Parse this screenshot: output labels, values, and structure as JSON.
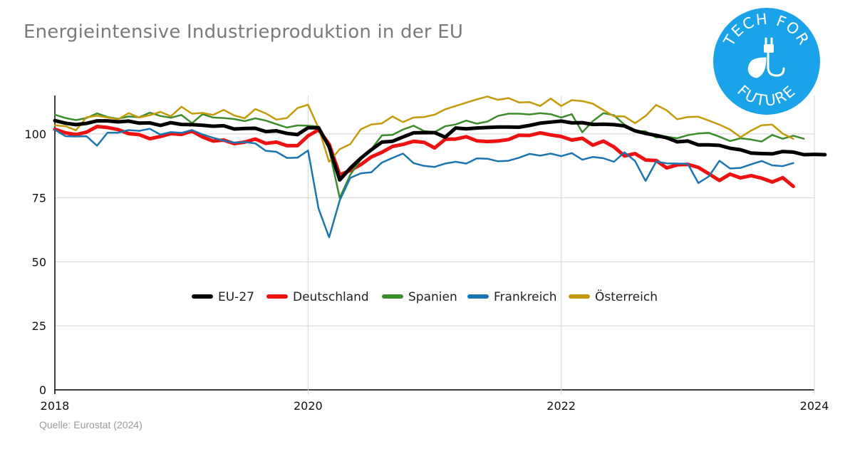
{
  "title": "Energieintensive Industrieproduktion in der EU",
  "source": "Quelle: Eurostat (2024)",
  "logo": {
    "text_top": "TECH FOR",
    "text_bottom": "FUTURE",
    "color": "#1aa3e8",
    "icon": "leaf-plug-icon"
  },
  "chart_data": {
    "type": "line",
    "title": "Energieintensive Industrieproduktion in der EU",
    "xlabel": "",
    "ylabel": "",
    "xlim": [
      2018,
      2024
    ],
    "ylim": [
      0,
      115
    ],
    "x_ticks": [
      "2018",
      "2020",
      "2022",
      "2024"
    ],
    "y_ticks": [
      "0",
      "25",
      "50",
      "75",
      "100"
    ],
    "grid": true,
    "legend_position": "center",
    "x_start": "2018-01",
    "x_step": "month",
    "series": [
      {
        "name": "EU-27",
        "color": "#000000",
        "width": 5,
        "values": [
          105.2,
          104.2,
          103.6,
          104.1,
          105.1,
          105.1,
          104.7,
          105,
          104.2,
          104.3,
          103.3,
          104.4,
          103.7,
          103.6,
          103.4,
          103,
          103.2,
          101.9,
          102.1,
          102.2,
          100.9,
          101.2,
          100.2,
          99.7,
          102.4,
          102.4,
          95,
          82,
          86.6,
          90.5,
          93.8,
          96.8,
          97.1,
          98.8,
          100.4,
          100.5,
          100.5,
          98.7,
          102.3,
          102,
          102.3,
          102.5,
          102.7,
          102.7,
          102.6,
          103.3,
          104.2,
          104.6,
          105,
          104.3,
          104.4,
          103.7,
          103.8,
          103.6,
          103.1,
          101.2,
          100.2,
          99.4,
          98.5,
          96.9,
          97.2,
          95.7,
          95.7,
          95.5,
          94.4,
          93.8,
          92.5,
          92.3,
          92.2,
          93.1,
          92.9,
          91.9,
          92,
          91.9
        ]
      },
      {
        "name": "Deutschland",
        "color": "#ee1111",
        "width": 5,
        "values": [
          101.8,
          100.4,
          99.7,
          100.7,
          102.9,
          102.5,
          101.7,
          100.1,
          99.7,
          98.1,
          99,
          100.1,
          99.8,
          101.1,
          98.8,
          97.2,
          97.6,
          96.2,
          96.8,
          98,
          96.3,
          96.8,
          95.4,
          95.4,
          99.2,
          101.6,
          96,
          84,
          85.7,
          88,
          91,
          92.8,
          95.1,
          95.9,
          97.1,
          96.7,
          94.5,
          97.9,
          98,
          98.9,
          97.3,
          97,
          97.2,
          97.8,
          99.5,
          99.4,
          100.4,
          99.6,
          99,
          97.6,
          98.3,
          95.6,
          97.2,
          94.9,
          91.4,
          92.3,
          89.8,
          89.6,
          86.7,
          87.9,
          88.1,
          86.9,
          84.4,
          81.8,
          84.3,
          82.8,
          83.7,
          82.7,
          81.2,
          82.9,
          79.5
        ]
      },
      {
        "name": "Spanien",
        "color": "#3c8c2c",
        "width": 2.5,
        "values": [
          107.5,
          106.2,
          105.4,
          106.2,
          108,
          106.6,
          105.9,
          106.8,
          106.5,
          108.3,
          107,
          106.3,
          107.4,
          104.2,
          107.7,
          106.4,
          106.2,
          105.8,
          105,
          106.1,
          105.2,
          103.8,
          102.5,
          103.3,
          103.2,
          102.9,
          94,
          75,
          84,
          90,
          94,
          99.4,
          99.6,
          101.7,
          103.2,
          101.1,
          100.7,
          103,
          103.7,
          105.2,
          104,
          104.8,
          107,
          107.9,
          107.9,
          107.6,
          108.1,
          107.7,
          106.4,
          107.7,
          100.6,
          105,
          108.1,
          107.3,
          103.6,
          101.1,
          101,
          98.6,
          98.9,
          98.3,
          99.5,
          100.2,
          100.4,
          98.9,
          97.2,
          98.3,
          97.8,
          97,
          99.6,
          98.1,
          99.3,
          98.1
        ]
      },
      {
        "name": "Frankreich",
        "color": "#1b75b1",
        "width": 2.5,
        "values": [
          101.6,
          99.1,
          99,
          99.1,
          95.4,
          100.5,
          100.5,
          101.5,
          101.2,
          102,
          99.7,
          100.7,
          100.4,
          101.5,
          99.8,
          98.5,
          97.4,
          96.6,
          96.8,
          96.3,
          93.4,
          93,
          90.6,
          90.7,
          93.5,
          70.8,
          59.6,
          74,
          82.8,
          84.6,
          85,
          88.8,
          90.6,
          92.3,
          88.6,
          87.5,
          87.1,
          88.4,
          89.1,
          88.4,
          90.4,
          90.3,
          89.3,
          89.5,
          90.7,
          92.2,
          91.5,
          92.3,
          91.3,
          92.5,
          89.9,
          91,
          90.5,
          89.1,
          92.8,
          89.4,
          81.6,
          89.2,
          88.5,
          88.4,
          88.3,
          80.8,
          83.4,
          89.5,
          86.5,
          86.7,
          88.1,
          89.4,
          87.7,
          87.4,
          88.6
        ]
      },
      {
        "name": "Österreich",
        "color": "#c49a0c",
        "width": 2.5,
        "values": [
          103.4,
          103,
          101.4,
          106.5,
          107.1,
          106.4,
          105.7,
          108.1,
          106.4,
          107.3,
          108.6,
          106.9,
          110.6,
          107.9,
          108.2,
          107.4,
          109.4,
          107.2,
          106.1,
          109.7,
          108,
          105.6,
          106.2,
          110.1,
          111.4,
          102.3,
          89.1,
          94,
          96,
          101.8,
          103.7,
          104.1,
          106.8,
          104.6,
          106.4,
          106.6,
          107.5,
          109.6,
          110.9,
          112.2,
          113.5,
          114.6,
          113.3,
          114,
          112.3,
          112.4,
          110.9,
          113.8,
          110.9,
          113.2,
          112.8,
          111.8,
          109.3,
          106.9,
          106.8,
          104.2,
          107,
          111.3,
          109.2,
          105.7,
          106.6,
          106.7,
          105.2,
          103.6,
          101.7,
          98.7,
          101.3,
          103.4,
          103.6,
          100.1,
          98.1
        ]
      }
    ]
  }
}
